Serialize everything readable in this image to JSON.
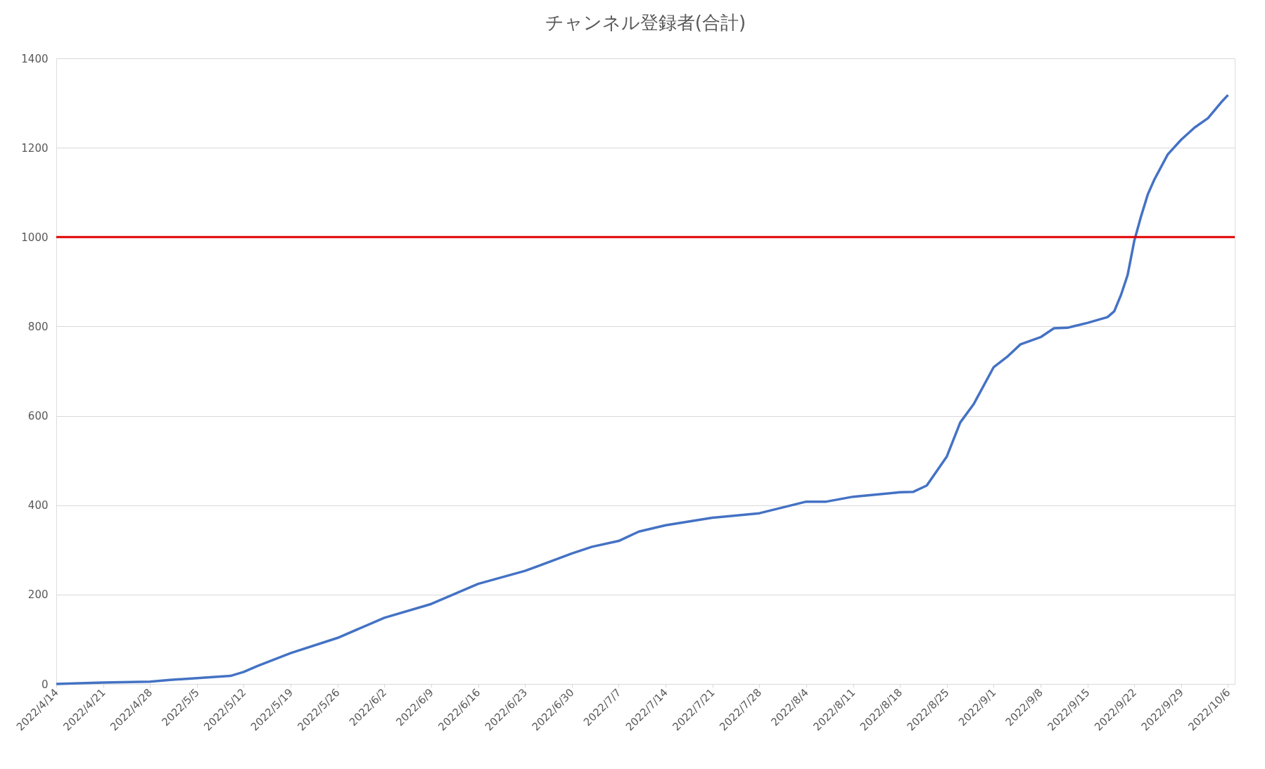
{
  "chart_data": {
    "type": "line",
    "title": "チャンネル登録者(合計)",
    "x": [
      "2022-04-14",
      "2022-04-21",
      "2022-04-28",
      "2022-05-01",
      "2022-05-05",
      "2022-05-10",
      "2022-05-12",
      "2022-05-14",
      "2022-05-19",
      "2022-05-26",
      "2022-06-02",
      "2022-06-09",
      "2022-06-16",
      "2022-06-23",
      "2022-06-30",
      "2022-07-03",
      "2022-07-07",
      "2022-07-10",
      "2022-07-14",
      "2022-07-21",
      "2022-07-28",
      "2022-08-04",
      "2022-08-07",
      "2022-08-11",
      "2022-08-14",
      "2022-08-18",
      "2022-08-20",
      "2022-08-22",
      "2022-08-25",
      "2022-08-27",
      "2022-08-29",
      "2022-09-01",
      "2022-09-03",
      "2022-09-05",
      "2022-09-08",
      "2022-09-10",
      "2022-09-12",
      "2022-09-15",
      "2022-09-18",
      "2022-09-19",
      "2022-09-20",
      "2022-09-21",
      "2022-09-22",
      "2022-09-23",
      "2022-09-24",
      "2022-09-25",
      "2022-09-27",
      "2022-09-29",
      "2022-10-01",
      "2022-10-03",
      "2022-10-05",
      "2022-10-06"
    ],
    "series": [
      {
        "color": "#4472c4",
        "values": [
          0,
          3,
          5,
          9,
          13,
          18,
          27,
          40,
          69,
          103,
          148,
          179,
          224,
          253,
          292,
          307,
          320,
          341,
          355,
          372,
          382,
          408,
          408,
          419,
          423,
          429,
          430,
          444,
          509,
          585,
          626,
          709,
          732,
          760,
          776,
          796,
          797,
          808,
          821,
          834,
          870,
          915,
          992,
          1046,
          1095,
          1129,
          1185,
          1218,
          1245,
          1266,
          1302,
          1318
        ]
      }
    ],
    "xlim": [
      "2022-04-14",
      "2022-10-07"
    ],
    "xticks": [
      {
        "value": "2022-04-14",
        "label": "2022/4/14"
      },
      {
        "value": "2022-04-21",
        "label": "2022/4/21"
      },
      {
        "value": "2022-04-28",
        "label": "2022/4/28"
      },
      {
        "value": "2022-05-05",
        "label": "2022/5/5"
      },
      {
        "value": "2022-05-12",
        "label": "2022/5/12"
      },
      {
        "value": "2022-05-19",
        "label": "2022/5/19"
      },
      {
        "value": "2022-05-26",
        "label": "2022/5/26"
      },
      {
        "value": "2022-06-02",
        "label": "2022/6/2"
      },
      {
        "value": "2022-06-09",
        "label": "2022/6/9"
      },
      {
        "value": "2022-06-16",
        "label": "2022/6/16"
      },
      {
        "value": "2022-06-23",
        "label": "2022/6/23"
      },
      {
        "value": "2022-06-30",
        "label": "2022/6/30"
      },
      {
        "value": "2022-07-07",
        "label": "2022/7/7"
      },
      {
        "value": "2022-07-14",
        "label": "2022/7/14"
      },
      {
        "value": "2022-07-21",
        "label": "2022/7/21"
      },
      {
        "value": "2022-07-28",
        "label": "2022/7/28"
      },
      {
        "value": "2022-08-04",
        "label": "2022/8/4"
      },
      {
        "value": "2022-08-11",
        "label": "2022/8/11"
      },
      {
        "value": "2022-08-18",
        "label": "2022/8/18"
      },
      {
        "value": "2022-08-25",
        "label": "2022/8/25"
      },
      {
        "value": "2022-09-01",
        "label": "2022/9/1"
      },
      {
        "value": "2022-09-08",
        "label": "2022/9/8"
      },
      {
        "value": "2022-09-15",
        "label": "2022/9/15"
      },
      {
        "value": "2022-09-22",
        "label": "2022/9/22"
      },
      {
        "value": "2022-09-29",
        "label": "2022/9/29"
      },
      {
        "value": "2022-10-06",
        "label": "2022/10/6"
      }
    ],
    "ylim": [
      0,
      1400
    ],
    "yticks": [
      0,
      200,
      400,
      600,
      800,
      1000,
      1200,
      1400
    ],
    "grid": "y",
    "line_style": "solid",
    "marker": "none",
    "ref_lines": [
      {
        "axis": "y",
        "value": 1000,
        "color": "#e00000"
      }
    ]
  }
}
